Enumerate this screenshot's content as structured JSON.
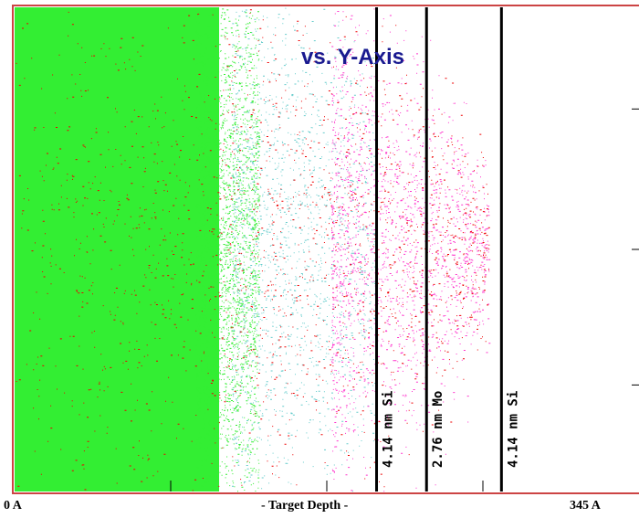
{
  "chart_data": {
    "type": "scatter",
    "title": "vs. Y-Axis",
    "xlabel": "- Target Depth -",
    "x_range_labels": {
      "min": "0 A",
      "max": "345 A"
    },
    "xlim": [
      0,
      345
    ],
    "layers": [
      {
        "label": "4.14 nm Si",
        "thickness_angstrom": 41.4,
        "boundary_x": 200
      },
      {
        "label": "2.76 nm Mo",
        "thickness_angstrom": 27.6,
        "boundary_x": 227.6
      },
      {
        "label": "4.14 nm Si",
        "thickness_angstrom": 41.4,
        "boundary_x": 269
      }
    ],
    "series": [
      {
        "name": "",
        "color": "#33ee33",
        "x_range": [
          0,
          125
        ]
      },
      {
        "name": "",
        "color": "#66cccc",
        "x_range": [
          120,
          200
        ]
      },
      {
        "name": "",
        "color": "#ff33cc",
        "x_range": [
          195,
          262
        ]
      },
      {
        "name": "",
        "color": "#ee0000",
        "x_range": [
          0,
          262
        ]
      }
    ],
    "colors": {
      "frame": "#cc4444",
      "title": "#1a1a90",
      "background": "#ffffff"
    }
  }
}
